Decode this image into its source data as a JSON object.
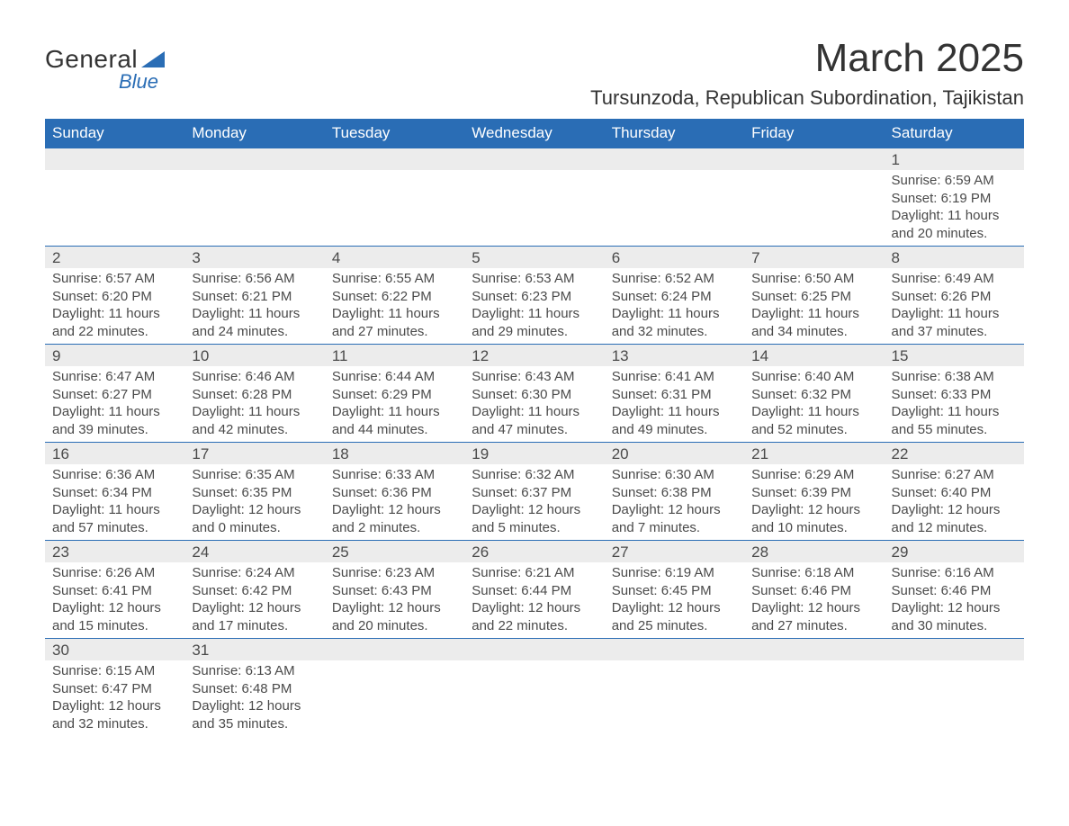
{
  "logo": {
    "general": "General",
    "blue": "Blue"
  },
  "title": "March 2025",
  "location": "Tursunzoda, Republican Subordination, Tajikistan",
  "colors": {
    "header_bg": "#2a6db5",
    "header_text": "#ffffff",
    "daynum_bg": "#ececec",
    "row_border": "#2a6db5",
    "body_text": "#4a4a4a",
    "page_bg": "#ffffff",
    "logo_text": "#333333",
    "logo_blue": "#2a6db5"
  },
  "typography": {
    "title_fontsize": 44,
    "location_fontsize": 22,
    "header_fontsize": 17,
    "daynum_fontsize": 17,
    "cell_fontsize": 15
  },
  "columns": [
    "Sunday",
    "Monday",
    "Tuesday",
    "Wednesday",
    "Thursday",
    "Friday",
    "Saturday"
  ],
  "weeks": [
    [
      null,
      null,
      null,
      null,
      null,
      null,
      {
        "n": "1",
        "sr": "Sunrise: 6:59 AM",
        "ss": "Sunset: 6:19 PM",
        "d1": "Daylight: 11 hours",
        "d2": "and 20 minutes."
      }
    ],
    [
      {
        "n": "2",
        "sr": "Sunrise: 6:57 AM",
        "ss": "Sunset: 6:20 PM",
        "d1": "Daylight: 11 hours",
        "d2": "and 22 minutes."
      },
      {
        "n": "3",
        "sr": "Sunrise: 6:56 AM",
        "ss": "Sunset: 6:21 PM",
        "d1": "Daylight: 11 hours",
        "d2": "and 24 minutes."
      },
      {
        "n": "4",
        "sr": "Sunrise: 6:55 AM",
        "ss": "Sunset: 6:22 PM",
        "d1": "Daylight: 11 hours",
        "d2": "and 27 minutes."
      },
      {
        "n": "5",
        "sr": "Sunrise: 6:53 AM",
        "ss": "Sunset: 6:23 PM",
        "d1": "Daylight: 11 hours",
        "d2": "and 29 minutes."
      },
      {
        "n": "6",
        "sr": "Sunrise: 6:52 AM",
        "ss": "Sunset: 6:24 PM",
        "d1": "Daylight: 11 hours",
        "d2": "and 32 minutes."
      },
      {
        "n": "7",
        "sr": "Sunrise: 6:50 AM",
        "ss": "Sunset: 6:25 PM",
        "d1": "Daylight: 11 hours",
        "d2": "and 34 minutes."
      },
      {
        "n": "8",
        "sr": "Sunrise: 6:49 AM",
        "ss": "Sunset: 6:26 PM",
        "d1": "Daylight: 11 hours",
        "d2": "and 37 minutes."
      }
    ],
    [
      {
        "n": "9",
        "sr": "Sunrise: 6:47 AM",
        "ss": "Sunset: 6:27 PM",
        "d1": "Daylight: 11 hours",
        "d2": "and 39 minutes."
      },
      {
        "n": "10",
        "sr": "Sunrise: 6:46 AM",
        "ss": "Sunset: 6:28 PM",
        "d1": "Daylight: 11 hours",
        "d2": "and 42 minutes."
      },
      {
        "n": "11",
        "sr": "Sunrise: 6:44 AM",
        "ss": "Sunset: 6:29 PM",
        "d1": "Daylight: 11 hours",
        "d2": "and 44 minutes."
      },
      {
        "n": "12",
        "sr": "Sunrise: 6:43 AM",
        "ss": "Sunset: 6:30 PM",
        "d1": "Daylight: 11 hours",
        "d2": "and 47 minutes."
      },
      {
        "n": "13",
        "sr": "Sunrise: 6:41 AM",
        "ss": "Sunset: 6:31 PM",
        "d1": "Daylight: 11 hours",
        "d2": "and 49 minutes."
      },
      {
        "n": "14",
        "sr": "Sunrise: 6:40 AM",
        "ss": "Sunset: 6:32 PM",
        "d1": "Daylight: 11 hours",
        "d2": "and 52 minutes."
      },
      {
        "n": "15",
        "sr": "Sunrise: 6:38 AM",
        "ss": "Sunset: 6:33 PM",
        "d1": "Daylight: 11 hours",
        "d2": "and 55 minutes."
      }
    ],
    [
      {
        "n": "16",
        "sr": "Sunrise: 6:36 AM",
        "ss": "Sunset: 6:34 PM",
        "d1": "Daylight: 11 hours",
        "d2": "and 57 minutes."
      },
      {
        "n": "17",
        "sr": "Sunrise: 6:35 AM",
        "ss": "Sunset: 6:35 PM",
        "d1": "Daylight: 12 hours",
        "d2": "and 0 minutes."
      },
      {
        "n": "18",
        "sr": "Sunrise: 6:33 AM",
        "ss": "Sunset: 6:36 PM",
        "d1": "Daylight: 12 hours",
        "d2": "and 2 minutes."
      },
      {
        "n": "19",
        "sr": "Sunrise: 6:32 AM",
        "ss": "Sunset: 6:37 PM",
        "d1": "Daylight: 12 hours",
        "d2": "and 5 minutes."
      },
      {
        "n": "20",
        "sr": "Sunrise: 6:30 AM",
        "ss": "Sunset: 6:38 PM",
        "d1": "Daylight: 12 hours",
        "d2": "and 7 minutes."
      },
      {
        "n": "21",
        "sr": "Sunrise: 6:29 AM",
        "ss": "Sunset: 6:39 PM",
        "d1": "Daylight: 12 hours",
        "d2": "and 10 minutes."
      },
      {
        "n": "22",
        "sr": "Sunrise: 6:27 AM",
        "ss": "Sunset: 6:40 PM",
        "d1": "Daylight: 12 hours",
        "d2": "and 12 minutes."
      }
    ],
    [
      {
        "n": "23",
        "sr": "Sunrise: 6:26 AM",
        "ss": "Sunset: 6:41 PM",
        "d1": "Daylight: 12 hours",
        "d2": "and 15 minutes."
      },
      {
        "n": "24",
        "sr": "Sunrise: 6:24 AM",
        "ss": "Sunset: 6:42 PM",
        "d1": "Daylight: 12 hours",
        "d2": "and 17 minutes."
      },
      {
        "n": "25",
        "sr": "Sunrise: 6:23 AM",
        "ss": "Sunset: 6:43 PM",
        "d1": "Daylight: 12 hours",
        "d2": "and 20 minutes."
      },
      {
        "n": "26",
        "sr": "Sunrise: 6:21 AM",
        "ss": "Sunset: 6:44 PM",
        "d1": "Daylight: 12 hours",
        "d2": "and 22 minutes."
      },
      {
        "n": "27",
        "sr": "Sunrise: 6:19 AM",
        "ss": "Sunset: 6:45 PM",
        "d1": "Daylight: 12 hours",
        "d2": "and 25 minutes."
      },
      {
        "n": "28",
        "sr": "Sunrise: 6:18 AM",
        "ss": "Sunset: 6:46 PM",
        "d1": "Daylight: 12 hours",
        "d2": "and 27 minutes."
      },
      {
        "n": "29",
        "sr": "Sunrise: 6:16 AM",
        "ss": "Sunset: 6:46 PM",
        "d1": "Daylight: 12 hours",
        "d2": "and 30 minutes."
      }
    ],
    [
      {
        "n": "30",
        "sr": "Sunrise: 6:15 AM",
        "ss": "Sunset: 6:47 PM",
        "d1": "Daylight: 12 hours",
        "d2": "and 32 minutes."
      },
      {
        "n": "31",
        "sr": "Sunrise: 6:13 AM",
        "ss": "Sunset: 6:48 PM",
        "d1": "Daylight: 12 hours",
        "d2": "and 35 minutes."
      },
      null,
      null,
      null,
      null,
      null
    ]
  ]
}
